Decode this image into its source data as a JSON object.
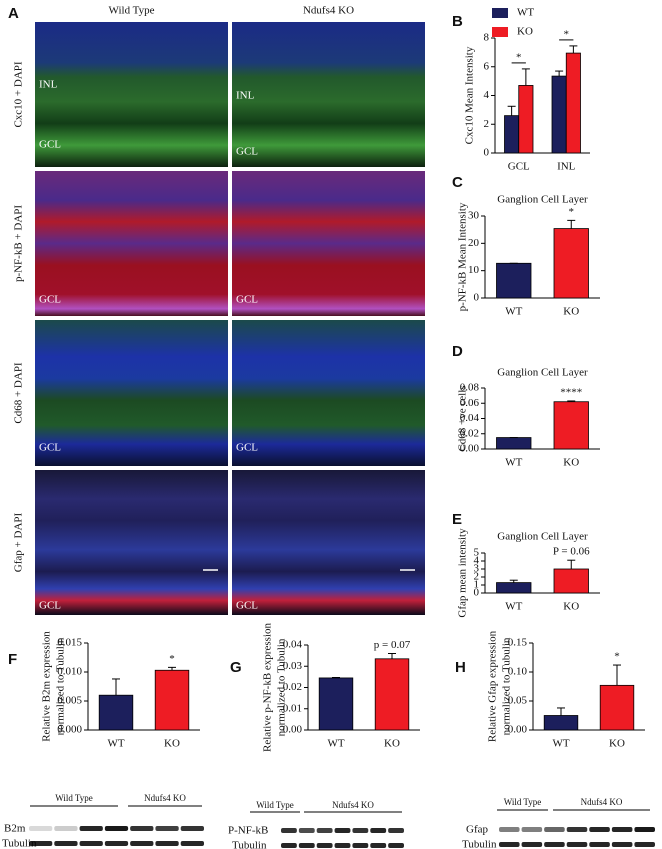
{
  "panel_a": {
    "label": "A",
    "columns": [
      "Wild Type",
      "Ndufs4 KO"
    ],
    "rows": [
      {
        "label": "Cxc10 + DAPI",
        "overlays": [
          "INL",
          "GCL"
        ]
      },
      {
        "label": "p-NF-kB + DAPI",
        "overlays": [
          "GCL"
        ]
      },
      {
        "label": "Cd68 + DAPI",
        "overlays": [
          "GCL"
        ]
      },
      {
        "label": "Gfap + DAPI",
        "overlays": [
          "GCL"
        ]
      }
    ]
  },
  "chart_data": [
    {
      "type": "bar",
      "panel": "B",
      "ylabel": "Cxc10 Mean Intensity",
      "categories": [
        "GCL",
        "INL"
      ],
      "series": [
        {
          "name": "WT",
          "color": "#1c1f5c",
          "values": [
            2.6,
            5.35
          ],
          "errors": [
            0.65,
            0.35
          ]
        },
        {
          "name": "KO",
          "color": "#ee1c24",
          "values": [
            4.7,
            6.95
          ],
          "errors": [
            1.15,
            0.5
          ]
        }
      ],
      "annotations": [
        "*",
        "*"
      ],
      "legend": "top-left",
      "ylim": [
        0,
        8
      ],
      "yticks": [
        0,
        2,
        4,
        6,
        8
      ]
    },
    {
      "type": "bar",
      "panel": "C",
      "title": "Ganglion Cell Layer",
      "ylabel": "p-NF-kB Mean Intensity",
      "categories": [
        "WT",
        "KO"
      ],
      "values": [
        12.7,
        25.4
      ],
      "errors": [
        0,
        3
      ],
      "colors": [
        "#1c1f5c",
        "#ee1c24"
      ],
      "annotation": "*",
      "ylim": [
        0,
        30
      ],
      "yticks": [
        0,
        10,
        20,
        30
      ]
    },
    {
      "type": "bar",
      "panel": "D",
      "title": "Ganglion Cell Layer",
      "ylabel": "Cd68 +ve cells",
      "categories": [
        "WT",
        "KO"
      ],
      "values": [
        0.015,
        0.062
      ],
      "errors": [
        0,
        0.001
      ],
      "colors": [
        "#1c1f5c",
        "#ee1c24"
      ],
      "annotation": "****",
      "ylim": [
        0,
        0.08
      ],
      "yticks": [
        {
          "value": 0,
          "label": "0.00"
        },
        0.02,
        0.04,
        0.06,
        {
          "value": 0.08,
          "label": "0.08"
        }
      ]
    },
    {
      "type": "bar",
      "panel": "E",
      "title": "Ganglion  Cell Layer",
      "ylabel": "Gfap mean intensity",
      "categories": [
        "WT",
        "KO"
      ],
      "values": [
        1.3,
        3.0
      ],
      "errors": [
        0.3,
        1.1
      ],
      "colors": [
        "#1c1f5c",
        "#ee1c24"
      ],
      "annotation": "P = 0.06",
      "ylim": [
        0,
        5
      ],
      "yticks": [
        0,
        1,
        2,
        3,
        4,
        5
      ]
    },
    {
      "type": "bar",
      "panel": "F",
      "ylabel": [
        "Relative B2m expression",
        "normalized to Tubulin"
      ],
      "categories": [
        "WT",
        "KO"
      ],
      "values": [
        0.006,
        0.0103
      ],
      "errors": [
        0.0028,
        0.0005
      ],
      "colors": [
        "#1c1f5c",
        "#ee1c24"
      ],
      "annotation": "*",
      "ylim": [
        0,
        0.015
      ],
      "yticks": [
        {
          "value": 0,
          "label": "0.000"
        },
        0.005,
        {
          "value": 0.01,
          "label": "0.010"
        },
        0.015
      ]
    },
    {
      "type": "bar",
      "panel": "G",
      "ylabel": [
        "Relative p-NF-kB expression",
        "normalized to Tubulin"
      ],
      "categories": [
        "WT",
        "KO"
      ],
      "values": [
        0.0245,
        0.0335
      ],
      "errors": [
        0.0002,
        0.0025
      ],
      "colors": [
        "#1c1f5c",
        "#ee1c24"
      ],
      "annotation": "p = 0.07",
      "ylim": [
        0,
        0.04
      ],
      "yticks": [
        {
          "value": 0,
          "label": "0.00"
        },
        0.01,
        0.02,
        0.03,
        0.04
      ]
    },
    {
      "type": "bar",
      "panel": "H",
      "ylabel": [
        "Relative Gfap expression",
        "normalized to Tubulin"
      ],
      "categories": [
        "WT",
        "KO"
      ],
      "values": [
        0.025,
        0.077
      ],
      "errors": [
        0.013,
        0.035
      ],
      "colors": [
        "#1c1f5c",
        "#ee1c24"
      ],
      "annotation": "*",
      "ylim": [
        0,
        0.15
      ],
      "yticks": [
        {
          "value": 0,
          "label": "0.00"
        },
        0.05,
        {
          "value": 0.1,
          "label": "0.10"
        },
        0.15
      ]
    }
  ],
  "blots": [
    {
      "columns": [
        "Wild Type",
        "Ndufs4 KO"
      ],
      "rows": [
        "B2m",
        "Tubulin"
      ]
    },
    {
      "columns": [
        "Wild Type",
        "Ndufs4 KO"
      ],
      "rows": [
        "P-NF-kB",
        "Tubulin"
      ]
    },
    {
      "columns": [
        "Wild Type",
        "Ndufs4 KO"
      ],
      "rows": [
        "Gfap",
        "Tubulin"
      ]
    }
  ]
}
